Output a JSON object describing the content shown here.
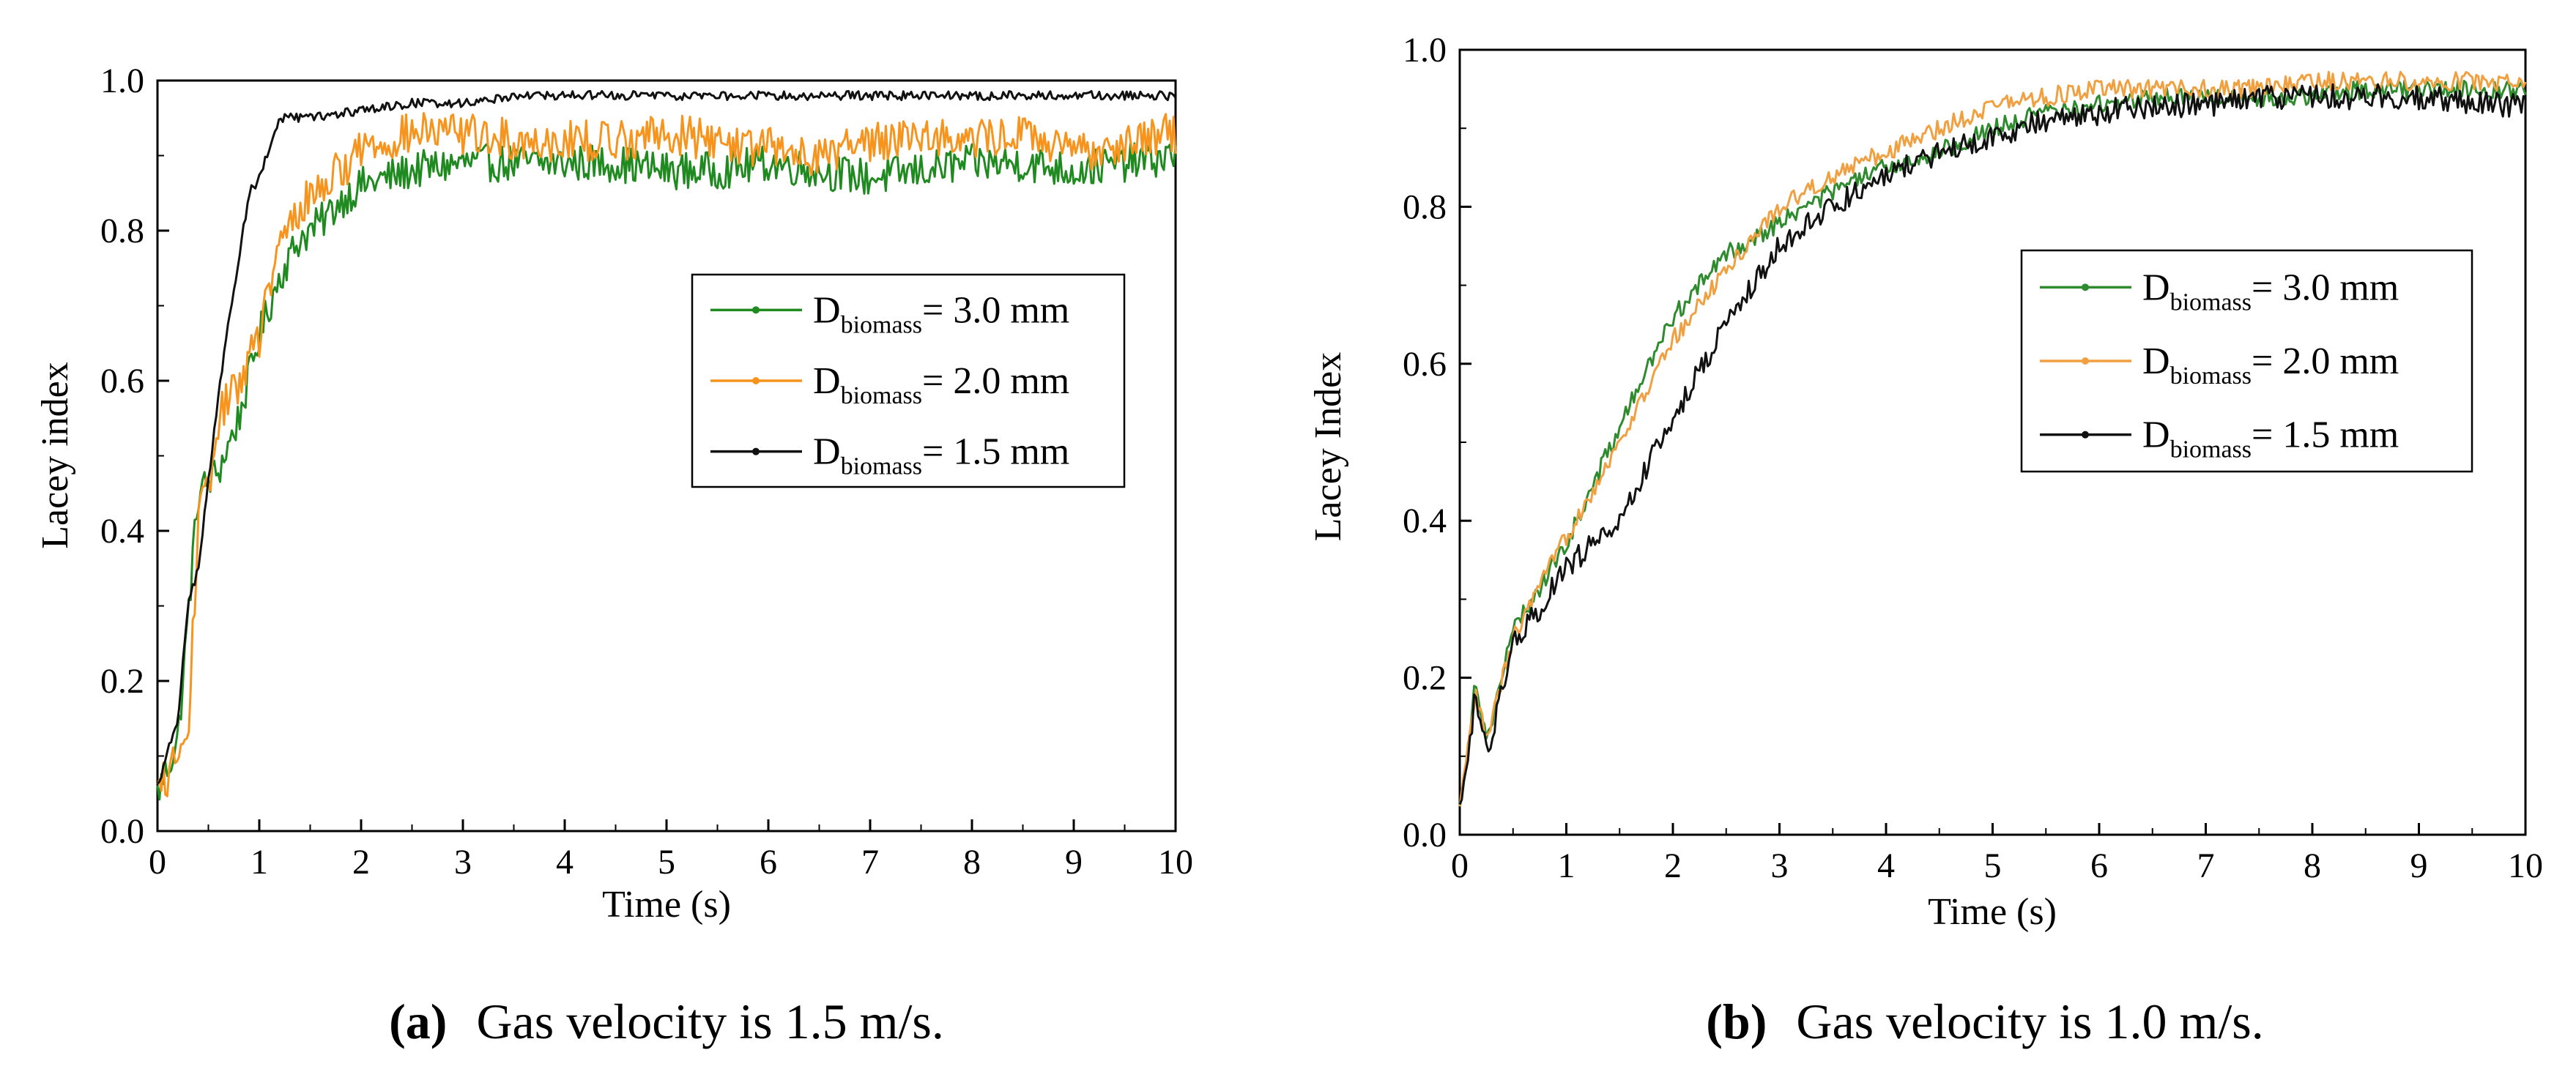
{
  "chart_data": [
    {
      "id": "a",
      "type": "line",
      "xlabel": "Time (s)",
      "ylabel": "Lacey index",
      "xlim": [
        0,
        10
      ],
      "ylim": [
        0,
        1
      ],
      "xticks": [
        "0",
        "1",
        "2",
        "3",
        "4",
        "5",
        "6",
        "7",
        "8",
        "9",
        "10"
      ],
      "yticks": [
        "0.0",
        "0.2",
        "0.4",
        "0.6",
        "0.8",
        "1.0"
      ],
      "legend": {
        "placement": "right-middle",
        "entries": [
          {
            "base": "D",
            "sub": "biomass",
            "rest": "= 3.0 mm"
          },
          {
            "base": "D",
            "sub": "biomass",
            "rest": "= 2.0 mm"
          },
          {
            "base": "D",
            "sub": "biomass",
            "rest": "= 1.5 mm"
          }
        ]
      },
      "caption": {
        "label": "(a)",
        "text": "Gas velocity is 1.5 m/s."
      },
      "series": [
        {
          "name": "Dbiomass = 3.0 mm",
          "color": "#1f8a1f",
          "marker": "triangle",
          "x": [
            0,
            0.2,
            0.4,
            0.6,
            0.8,
            1.0,
            1.2,
            1.4,
            1.6,
            1.8,
            2.0,
            2.5,
            3,
            3.5,
            4,
            4.5,
            5,
            5.5,
            6,
            6.5,
            7,
            7.5,
            8,
            8.5,
            9,
            9.5,
            10
          ],
          "y": [
            0.05,
            0.12,
            0.45,
            0.48,
            0.55,
            0.66,
            0.74,
            0.79,
            0.81,
            0.84,
            0.86,
            0.88,
            0.89,
            0.89,
            0.89,
            0.89,
            0.88,
            0.88,
            0.89,
            0.88,
            0.87,
            0.88,
            0.89,
            0.89,
            0.88,
            0.89,
            0.9
          ],
          "noise": 0.025
        },
        {
          "name": "Dbiomass = 2.0 mm",
          "color": "#f7941d",
          "marker": "circle",
          "x": [
            0,
            0.2,
            0.3,
            0.4,
            0.5,
            0.6,
            0.8,
            1.0,
            1.2,
            1.4,
            1.6,
            1.8,
            2.0,
            2.5,
            3,
            3.5,
            4,
            4.5,
            5,
            5.5,
            6,
            6.5,
            7,
            7.5,
            8,
            8.5,
            9,
            9.5,
            10
          ],
          "y": [
            0.05,
            0.1,
            0.12,
            0.42,
            0.45,
            0.55,
            0.6,
            0.66,
            0.78,
            0.83,
            0.86,
            0.88,
            0.91,
            0.93,
            0.93,
            0.92,
            0.92,
            0.92,
            0.93,
            0.92,
            0.91,
            0.9,
            0.92,
            0.93,
            0.92,
            0.93,
            0.9,
            0.92,
            0.93
          ],
          "noise": 0.028
        },
        {
          "name": "Dbiomass = 1.5 mm",
          "color": "#111111",
          "marker": "square",
          "x": [
            0,
            0.2,
            0.3,
            0.4,
            0.6,
            0.7,
            0.9,
            1.0,
            1.2,
            1.5,
            2.0,
            2.5,
            3,
            3.5,
            4,
            4.5,
            5,
            5.5,
            6,
            6.5,
            7,
            7.5,
            8,
            8.5,
            9,
            9.5,
            10
          ],
          "y": [
            0.06,
            0.15,
            0.3,
            0.35,
            0.58,
            0.68,
            0.85,
            0.87,
            0.95,
            0.95,
            0.96,
            0.97,
            0.97,
            0.98,
            0.98,
            0.98,
            0.98,
            0.98,
            0.98,
            0.98,
            0.98,
            0.98,
            0.98,
            0.98,
            0.98,
            0.98,
            0.98
          ],
          "noise": 0.006
        }
      ]
    },
    {
      "id": "b",
      "type": "line",
      "xlabel": "Time (s)",
      "ylabel": "Lacey Index",
      "xlim": [
        0,
        10
      ],
      "ylim": [
        0,
        1
      ],
      "xticks": [
        "0",
        "1",
        "2",
        "3",
        "4",
        "5",
        "6",
        "7",
        "8",
        "9",
        "10"
      ],
      "yticks": [
        "0.0",
        "0.2",
        "0.4",
        "0.6",
        "0.8",
        "1.0"
      ],
      "legend": {
        "placement": "right-middle",
        "entries": [
          {
            "base": "D",
            "sub": "biomass",
            "rest": "= 3.0 mm"
          },
          {
            "base": "D",
            "sub": "biomass",
            "rest": "= 2.0 mm"
          },
          {
            "base": "D",
            "sub": "biomass",
            "rest": "= 1.5 mm"
          }
        ]
      },
      "caption": {
        "label": "(b)",
        "text": "Gas velocity is 1.0 m/s."
      },
      "series": [
        {
          "name": "Dbiomass = 3.0 mm",
          "color": "#2e8b2e",
          "marker": "dot",
          "x": [
            0,
            0.15,
            0.25,
            0.5,
            1.0,
            1.5,
            2.0,
            2.5,
            3.0,
            3.5,
            4.0,
            4.5,
            5.0,
            5.5,
            6.0,
            6.5,
            7.0,
            7.5,
            8.0,
            8.5,
            9.0,
            9.5,
            10
          ],
          "y": [
            0.03,
            0.2,
            0.12,
            0.26,
            0.37,
            0.52,
            0.66,
            0.74,
            0.78,
            0.82,
            0.85,
            0.87,
            0.9,
            0.92,
            0.93,
            0.94,
            0.94,
            0.94,
            0.94,
            0.95,
            0.95,
            0.95,
            0.95
          ],
          "noise": 0.012
        },
        {
          "name": "Dbiomass = 2.0 mm",
          "color": "#f0a040",
          "marker": "dot",
          "x": [
            0,
            0.15,
            0.25,
            0.5,
            1.0,
            1.5,
            2.0,
            2.5,
            3.0,
            3.5,
            4.0,
            4.5,
            5.0,
            5.5,
            6.0,
            6.5,
            7.0,
            7.5,
            8.0,
            8.5,
            9.0,
            9.5,
            10
          ],
          "y": [
            0.03,
            0.18,
            0.12,
            0.25,
            0.38,
            0.5,
            0.63,
            0.72,
            0.8,
            0.84,
            0.87,
            0.9,
            0.93,
            0.94,
            0.95,
            0.95,
            0.95,
            0.95,
            0.96,
            0.96,
            0.96,
            0.96,
            0.96
          ],
          "noise": 0.012
        },
        {
          "name": "Dbiomass = 1.5 mm",
          "color": "#111111",
          "marker": "dot",
          "x": [
            0,
            0.15,
            0.25,
            0.5,
            1.0,
            1.5,
            2.0,
            2.5,
            3.0,
            3.5,
            4.0,
            4.5,
            5.0,
            5.5,
            6.0,
            6.5,
            7.0,
            7.5,
            8.0,
            8.5,
            9.0,
            9.5,
            10
          ],
          "y": [
            0.03,
            0.18,
            0.1,
            0.24,
            0.34,
            0.4,
            0.53,
            0.65,
            0.75,
            0.8,
            0.84,
            0.87,
            0.89,
            0.91,
            0.92,
            0.93,
            0.93,
            0.94,
            0.94,
            0.94,
            0.94,
            0.93,
            0.93
          ],
          "noise": 0.016
        }
      ]
    }
  ]
}
